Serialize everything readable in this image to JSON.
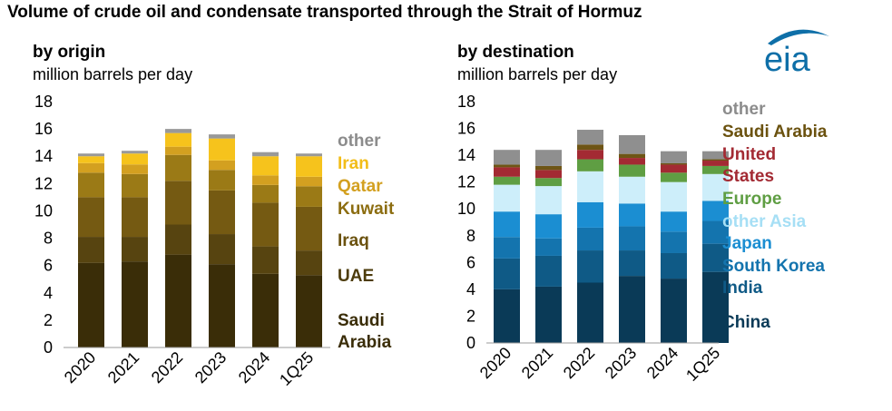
{
  "title": "Volume of crude oil and condensate transported through the Strait of Hormuz",
  "logo": {
    "text": "eia",
    "icon": "eia-logo-icon",
    "color": "#0e6fa8"
  },
  "chart_data": [
    {
      "type": "bar",
      "stacked": true,
      "subtitle": "by origin",
      "ylabel": "million barrels per day",
      "ylim": [
        0,
        18
      ],
      "yticks": [
        0,
        2,
        4,
        6,
        8,
        10,
        12,
        14,
        16,
        18
      ],
      "grid": false,
      "legend_position": "right",
      "categories": [
        "2020",
        "2021",
        "2022",
        "2023",
        "2024",
        "1Q25"
      ],
      "series": [
        {
          "name": "Saudi Arabia",
          "color": "#3a2d08",
          "values": [
            6.2,
            6.3,
            6.8,
            6.1,
            5.4,
            5.3
          ]
        },
        {
          "name": "UAE",
          "color": "#574410",
          "values": [
            1.9,
            1.8,
            2.2,
            2.2,
            2.0,
            1.8
          ]
        },
        {
          "name": "Iraq",
          "color": "#755a12",
          "values": [
            2.9,
            2.9,
            3.2,
            3.2,
            3.2,
            3.2
          ]
        },
        {
          "name": "Kuwait",
          "color": "#9b7a16",
          "values": [
            1.8,
            1.7,
            1.9,
            1.5,
            1.3,
            1.5
          ]
        },
        {
          "name": "Qatar",
          "color": "#d3a020",
          "values": [
            0.7,
            0.7,
            0.6,
            0.7,
            0.7,
            0.7
          ]
        },
        {
          "name": "Iran",
          "color": "#f6c31c",
          "values": [
            0.5,
            0.8,
            1.0,
            1.6,
            1.4,
            1.5
          ]
        },
        {
          "name": "other",
          "color": "#999999",
          "values": [
            0.2,
            0.2,
            0.3,
            0.3,
            0.3,
            0.2
          ]
        }
      ],
      "legend": [
        {
          "label": "other",
          "color": "#8c8c8c"
        },
        {
          "label": "Iran",
          "color": "#f2bd18"
        },
        {
          "label": "Qatar",
          "color": "#d3a020"
        },
        {
          "label": "Kuwait",
          "color": "#8c6d10"
        },
        {
          "label": "Iraq",
          "color": "#6b520f"
        },
        {
          "label": "UAE",
          "color": "#4d3c0c"
        },
        {
          "label": "Saudi",
          "color": "#3a2d08"
        },
        {
          "label": "Arabia",
          "color": "#3a2d08"
        }
      ]
    },
    {
      "type": "bar",
      "stacked": true,
      "subtitle": "by destination",
      "ylabel": "million barrels per day",
      "ylim": [
        0,
        18
      ],
      "yticks": [
        0,
        2,
        4,
        6,
        8,
        10,
        12,
        14,
        16,
        18
      ],
      "grid": false,
      "legend_position": "right",
      "categories": [
        "2020",
        "2021",
        "2022",
        "2023",
        "2024",
        "1Q25"
      ],
      "series": [
        {
          "name": "China",
          "color": "#0a3a57",
          "values": [
            4.0,
            4.2,
            4.5,
            5.0,
            4.8,
            5.3
          ]
        },
        {
          "name": "India",
          "color": "#0f5a86",
          "values": [
            2.3,
            2.3,
            2.4,
            1.9,
            1.9,
            2.1
          ]
        },
        {
          "name": "South Korea",
          "color": "#1474ae",
          "values": [
            1.6,
            1.3,
            1.7,
            1.8,
            1.6,
            1.7
          ]
        },
        {
          "name": "Japan",
          "color": "#1b8ed2",
          "values": [
            1.9,
            1.8,
            1.9,
            1.7,
            1.5,
            1.5
          ]
        },
        {
          "name": "other Asia",
          "color": "#cdeefa",
          "values": [
            2.0,
            2.1,
            2.3,
            2.0,
            2.2,
            2.0
          ]
        },
        {
          "name": "Europe",
          "color": "#5f9e43",
          "values": [
            0.6,
            0.6,
            0.9,
            0.9,
            0.7,
            0.6
          ]
        },
        {
          "name": "United States",
          "color": "#a32a33",
          "values": [
            0.7,
            0.6,
            0.7,
            0.5,
            0.6,
            0.4
          ]
        },
        {
          "name": "Saudi Arabia",
          "color": "#6e5515",
          "values": [
            0.2,
            0.3,
            0.4,
            0.3,
            0.1,
            0.1
          ]
        },
        {
          "name": "other",
          "color": "#8f8f8f",
          "values": [
            1.1,
            1.2,
            1.1,
            1.4,
            0.9,
            0.6
          ]
        }
      ],
      "legend": [
        {
          "label": "other",
          "color": "#8c8c8c"
        },
        {
          "label": "Saudi Arabia",
          "color": "#6b520f"
        },
        {
          "label": "United",
          "color": "#a32a33"
        },
        {
          "label": "States",
          "color": "#a32a33"
        },
        {
          "label": "Europe",
          "color": "#5f9e43"
        },
        {
          "label": "other Asia",
          "color": "#a6dff5"
        },
        {
          "label": "Japan",
          "color": "#1b8ed2"
        },
        {
          "label": "South Korea",
          "color": "#1474ae"
        },
        {
          "label": "India",
          "color": "#0f5a86"
        },
        {
          "label": "China",
          "color": "#0a3a57"
        }
      ]
    }
  ]
}
